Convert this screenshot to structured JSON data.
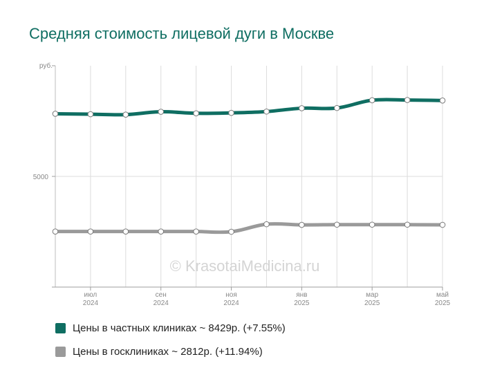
{
  "chart_data": {
    "type": "line",
    "title": "Средняя стоимость лицевой дуги в Москве",
    "ylabel": "руб.",
    "ylim": [
      0,
      10000
    ],
    "y_ticks": [
      {
        "value": 5000,
        "label": "5000"
      }
    ],
    "x_ticks": [
      {
        "index": 1,
        "month": "июл",
        "year": "2024"
      },
      {
        "index": 3,
        "month": "сен",
        "year": "2024"
      },
      {
        "index": 5,
        "month": "ноя",
        "year": "2024"
      },
      {
        "index": 7,
        "month": "янв",
        "year": "2025"
      },
      {
        "index": 9,
        "month": "мар",
        "year": "2025"
      },
      {
        "index": 11,
        "month": "май",
        "year": "2025"
      }
    ],
    "grid": true,
    "legend_position": "bottom",
    "watermark": "© KrasotaiMedicina.ru",
    "series": [
      {
        "name": "Цены в частных клиниках ~ 8429р. (+7.55%)",
        "color": "#0f6e62",
        "values": [
          7830,
          7810,
          7790,
          7920,
          7850,
          7870,
          7930,
          8080,
          8090,
          8440,
          8450,
          8429
        ]
      },
      {
        "name": "Цены в госклиниках ~ 2812р. (+11.94%)",
        "color": "#9a9a9a",
        "values": [
          2510,
          2510,
          2510,
          2510,
          2510,
          2500,
          2840,
          2810,
          2820,
          2820,
          2820,
          2812
        ]
      }
    ]
  }
}
